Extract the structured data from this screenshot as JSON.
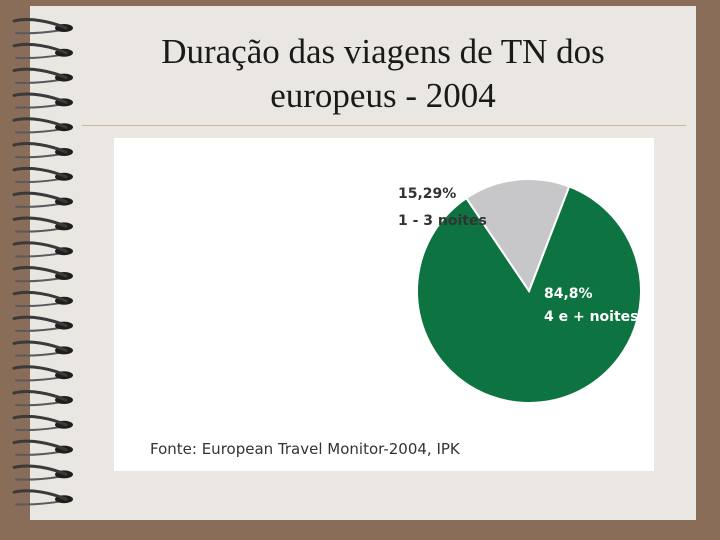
{
  "slide": {
    "title_line1": "Duração das viagens de TN dos",
    "title_line2": "europeus - 2004"
  },
  "colors": {
    "green": "#0d7340",
    "grey": "#c7c7c9",
    "background": "#8a6d58",
    "paper": "#eae7e3"
  },
  "chart_data": {
    "type": "pie",
    "title": "",
    "slices": [
      {
        "label": "4 e + noites",
        "value": 84.8,
        "value_label": "84,8%",
        "color": "#0d7340"
      },
      {
        "label": "1 - 3 noites",
        "value": 15.29,
        "value_label": "15,29%",
        "color": "#c7c7c9"
      }
    ],
    "source": "Fonte: European Travel Monitor-2004, IPK"
  }
}
